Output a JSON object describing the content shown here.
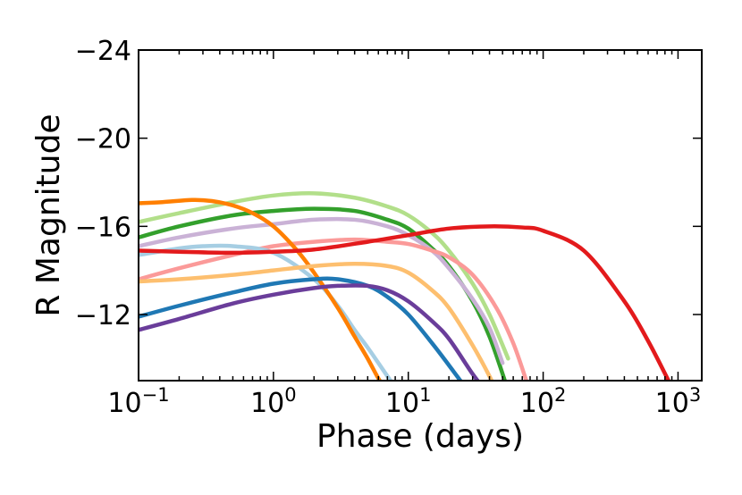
{
  "chart_data": {
    "type": "line",
    "title": "",
    "xlabel": "Phase (days)",
    "ylabel": "R Magnitude",
    "xscale": "log",
    "xlim": [
      0.1,
      1500
    ],
    "ylim": [
      -9,
      -24
    ],
    "x_ticks": [
      {
        "value": 0.1,
        "base": "10",
        "exp": "−1"
      },
      {
        "value": 1,
        "base": "10",
        "exp": "0"
      },
      {
        "value": 10,
        "base": "10",
        "exp": "1"
      },
      {
        "value": 100,
        "base": "10",
        "exp": "2"
      },
      {
        "value": 1000,
        "base": "10",
        "exp": "3"
      }
    ],
    "y_ticks": [
      {
        "value": -24,
        "label": "−24"
      },
      {
        "value": -20,
        "label": "−20"
      },
      {
        "value": -16,
        "label": "−16"
      },
      {
        "value": -12,
        "label": "−12"
      }
    ],
    "grid": false,
    "series": [
      {
        "color": "#b2df8a",
        "x": [
          0.1,
          0.2,
          0.5,
          1,
          2,
          4,
          7,
          10,
          15,
          20,
          30,
          40,
          55
        ],
        "y": [
          -16.2,
          -16.6,
          -17.1,
          -17.4,
          -17.5,
          -17.3,
          -16.9,
          -16.5,
          -15.7,
          -14.9,
          -13.4,
          -12,
          -10
        ]
      },
      {
        "color": "#33a02c",
        "x": [
          0.1,
          0.2,
          0.5,
          1,
          2,
          4,
          7,
          10,
          15,
          20,
          30,
          40,
          52
        ],
        "y": [
          -15.5,
          -16,
          -16.5,
          -16.7,
          -16.8,
          -16.7,
          -16.3,
          -15.9,
          -15,
          -14.2,
          -12.6,
          -11,
          -9
        ]
      },
      {
        "color": "#cab2d6",
        "x": [
          0.1,
          0.2,
          0.5,
          1,
          2,
          4,
          7,
          10,
          15,
          20,
          30,
          40,
          50
        ],
        "y": [
          -15.1,
          -15.5,
          -15.9,
          -16.1,
          -16.3,
          -16.3,
          -16,
          -15.6,
          -14.9,
          -14.1,
          -12.7,
          -11.4,
          -9.8
        ]
      },
      {
        "color": "#fb9a99",
        "x": [
          0.1,
          0.2,
          0.5,
          1,
          2,
          4,
          7,
          10,
          15,
          20,
          30,
          45,
          60,
          75
        ],
        "y": [
          -13.6,
          -14.1,
          -14.7,
          -15.1,
          -15.3,
          -15.4,
          -15.3,
          -15.2,
          -14.9,
          -14.6,
          -13.8,
          -12.3,
          -10.7,
          -9
        ]
      },
      {
        "color": "#a6cee3",
        "x": [
          0.1,
          0.2,
          0.3,
          0.5,
          1,
          2,
          3,
          4,
          5,
          6,
          7,
          8
        ],
        "y": [
          -14.7,
          -15,
          -15.1,
          -15.1,
          -14.8,
          -13.6,
          -12.4,
          -11.3,
          -10.5,
          -9.8,
          -9.2,
          -8.7
        ]
      },
      {
        "color": "#ff7f00",
        "x": [
          0.1,
          0.15,
          0.25,
          0.35,
          0.5,
          0.7,
          1,
          1.5,
          2,
          3,
          4,
          5,
          6,
          7
        ],
        "y": [
          -17.05,
          -17.1,
          -17.2,
          -17.15,
          -16.95,
          -16.6,
          -16,
          -14.9,
          -13.9,
          -12.3,
          -11,
          -10,
          -9.1,
          -8.5
        ]
      },
      {
        "color": "#fdbf6f",
        "x": [
          0.1,
          0.2,
          0.5,
          1,
          2,
          4,
          7,
          10,
          15,
          20,
          30,
          40,
          45
        ],
        "y": [
          -13.5,
          -13.6,
          -13.8,
          -14,
          -14.2,
          -14.3,
          -14.2,
          -13.9,
          -13.1,
          -12.3,
          -10.6,
          -9.2,
          -8.5
        ]
      },
      {
        "color": "#1f78b4",
        "x": [
          0.1,
          0.2,
          0.5,
          1,
          2,
          3,
          5,
          7,
          10,
          15,
          20,
          25,
          28
        ],
        "y": [
          -11.9,
          -12.4,
          -13,
          -13.4,
          -13.6,
          -13.6,
          -13.3,
          -12.8,
          -12,
          -10.7,
          -9.7,
          -8.9,
          -8.5
        ]
      },
      {
        "color": "#6a3d9a",
        "x": [
          0.1,
          0.2,
          0.5,
          1,
          2,
          3,
          5,
          7,
          10,
          15,
          20,
          30,
          38
        ],
        "y": [
          -11.3,
          -11.8,
          -12.5,
          -12.9,
          -13.2,
          -13.3,
          -13.3,
          -13.1,
          -12.6,
          -11.7,
          -10.9,
          -9.3,
          -8.5
        ]
      },
      {
        "color": "#e31a1c",
        "x": [
          0.1,
          0.2,
          0.5,
          1,
          2,
          5,
          10,
          20,
          40,
          70,
          100,
          200,
          400,
          600,
          850
        ],
        "y": [
          -14.9,
          -14.85,
          -14.8,
          -14.85,
          -14.95,
          -15.3,
          -15.6,
          -15.9,
          -16.0,
          -15.95,
          -15.8,
          -14.9,
          -12.6,
          -10.8,
          -9
        ]
      }
    ]
  }
}
